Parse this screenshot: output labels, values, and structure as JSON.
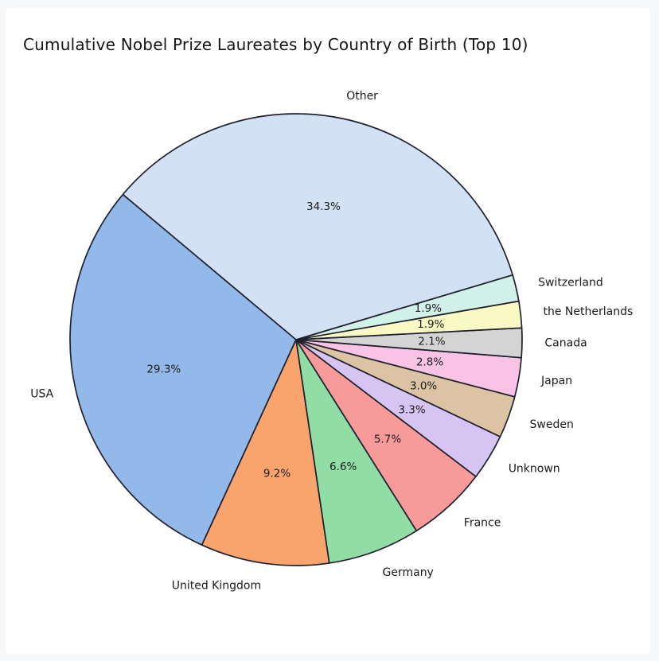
{
  "figure": {
    "background_color": "#f7f8fa",
    "canvas_color": "#ffffff"
  },
  "chart_data": {
    "type": "pie",
    "title": "Cumulative Nobel Prize Laureates by Country of Birth (Top 10)",
    "categories": [
      "USA",
      "United Kingdom",
      "Germany",
      "France",
      "Unknown",
      "Sweden",
      "Japan",
      "Canada",
      "the Netherlands",
      "Switzerland",
      "Other"
    ],
    "values": [
      29.3,
      9.2,
      6.6,
      5.7,
      3.3,
      3.0,
      2.8,
      2.1,
      1.9,
      1.9,
      34.3
    ],
    "percent_labels": [
      "29.3%",
      "9.2%",
      "6.6%",
      "5.7%",
      "3.3%",
      "3.0%",
      "2.8%",
      "2.1%",
      "1.9%",
      "1.9%",
      "34.3%"
    ],
    "colors": [
      "#92b9e9",
      "#f8a46c",
      "#90dda6",
      "#f69b9a",
      "#d6c5f3",
      "#dbc3a4",
      "#f8c3e5",
      "#d4d4d4",
      "#fbf9c3",
      "#d1f1e9",
      "#d2e2f4"
    ],
    "edge_color": "#20202e",
    "text_color": "#1a1a1a",
    "start_angle": 140,
    "counterclock": true,
    "label_distance": 1.1,
    "pct_distance": 0.6,
    "legend": "none",
    "grid": false
  }
}
